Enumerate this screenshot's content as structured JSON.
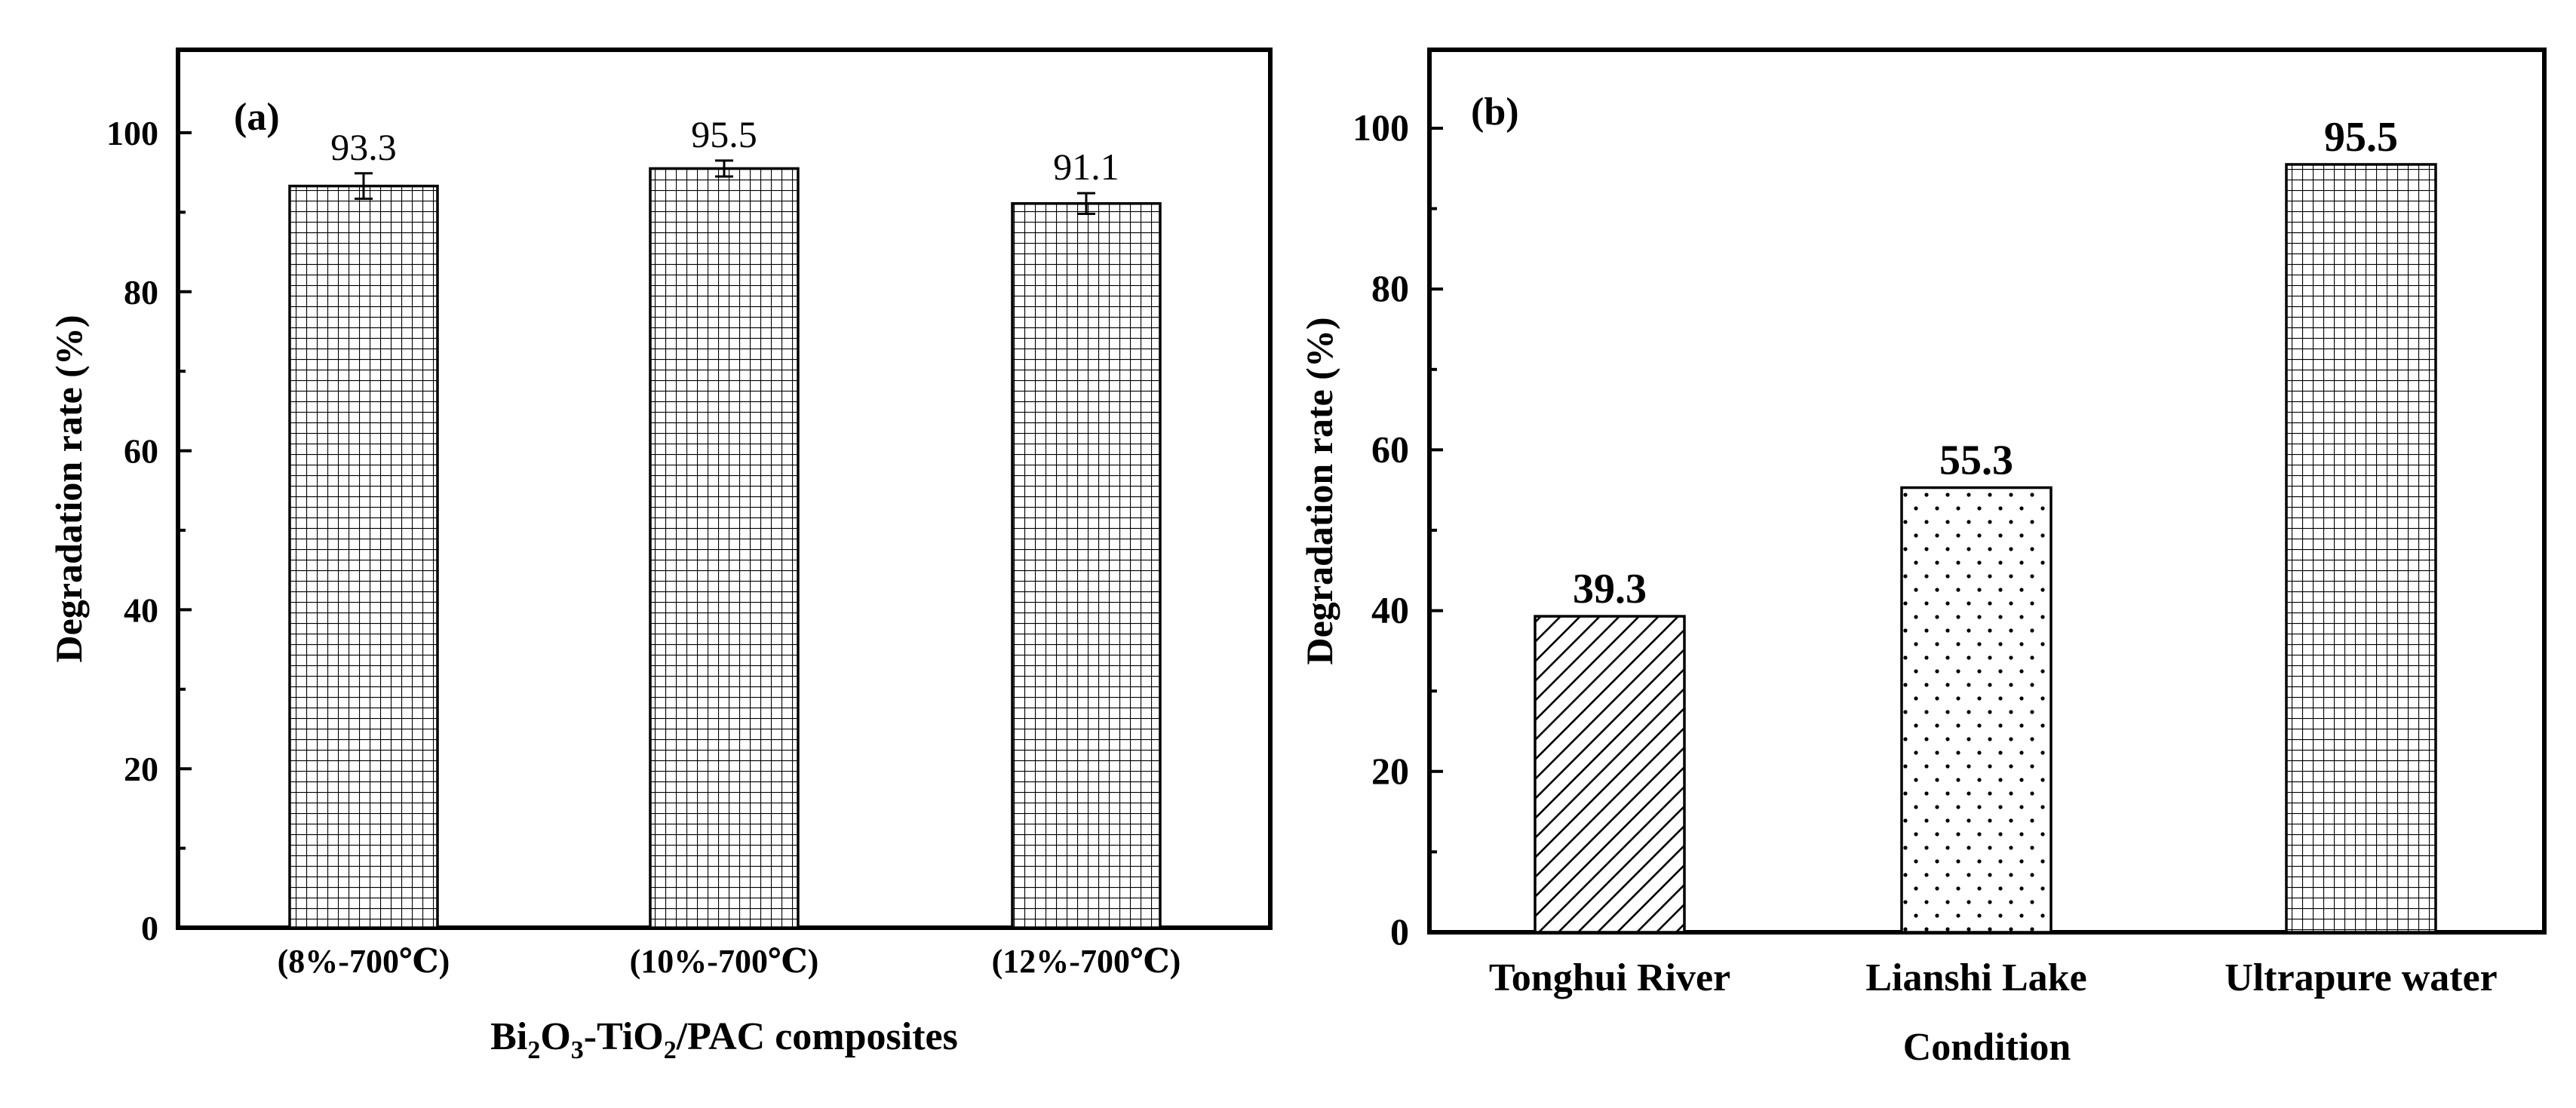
{
  "chart_data": [
    {
      "type": "bar",
      "panel_label": "(a)",
      "categories": [
        "(8%-700℃)",
        "(10%-700℃)",
        "(12%-700℃)"
      ],
      "values": [
        93.3,
        95.5,
        91.1
      ],
      "value_labels": [
        "93.3",
        "95.5",
        "91.1"
      ],
      "error": [
        1.6,
        1.0,
        1.3
      ],
      "patterns": [
        "grid",
        "grid",
        "grid"
      ],
      "xlabel": {
        "main": "Bi",
        "sub1": "2",
        "mid1": "O",
        "sub2": "3",
        "mid2": "-TiO",
        "sub3": "2",
        "tail": "/PAC composites"
      },
      "ylabel": "Degradation rate (%)",
      "ylim": [
        0,
        110
      ],
      "yticks": [
        0,
        20,
        40,
        60,
        80,
        100
      ],
      "ytick_labels": [
        "0",
        "20",
        "40",
        "60",
        "80",
        "100"
      ]
    },
    {
      "type": "bar",
      "panel_label": "(b)",
      "categories": [
        "Tonghui River",
        "Lianshi Lake",
        "Ultrapure water"
      ],
      "values": [
        39.3,
        55.3,
        95.5
      ],
      "value_labels": [
        "39.3",
        "55.3",
        "95.5"
      ],
      "patterns": [
        "hatch",
        "dots",
        "grid"
      ],
      "xlabel": "Condition",
      "ylabel": "Degradation rate (%)",
      "ylim": [
        0,
        110
      ],
      "yticks": [
        0,
        20,
        40,
        60,
        80,
        100
      ],
      "ytick_labels": [
        "0",
        "20",
        "40",
        "60",
        "80",
        "100"
      ]
    }
  ]
}
